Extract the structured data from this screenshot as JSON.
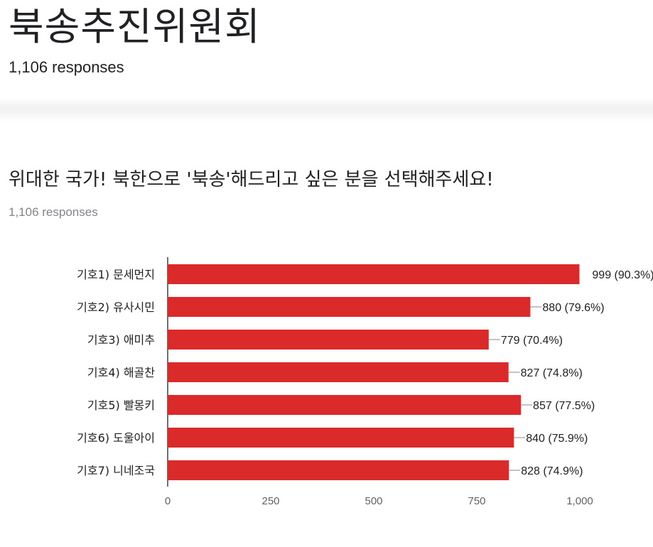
{
  "form": {
    "title": "북송추진위원회",
    "responses": "1,106 responses"
  },
  "question": {
    "title": "위대한 국가! 북한으로 '북송'해드리고 싶은 분을 선택해주세요!",
    "responses": "1,106 responses"
  },
  "colors": {
    "bar": "#db2a2a",
    "axis": "#3c4043",
    "leader": "#888888"
  },
  "chart_data": {
    "type": "bar",
    "orientation": "horizontal",
    "categories": [
      "기호1) 문세먼지",
      "기호2) 유사시민",
      "기호3) 애미추",
      "기호4) 해골찬",
      "기호5) 빨몽키",
      "기호6) 도울아이",
      "기호7) 니네조국"
    ],
    "values": [
      999,
      880,
      779,
      827,
      857,
      840,
      828
    ],
    "data_labels": [
      "999 (90.3%)",
      "880 (79.6%)",
      "779 (70.4%)",
      "827 (74.8%)",
      "857 (77.5%)",
      "840 (75.9%)",
      "828 (74.9%)"
    ],
    "xlim": [
      0,
      1000
    ],
    "xticks": [
      0,
      250,
      500,
      750,
      1000
    ],
    "xtick_labels": [
      "0",
      "250",
      "500",
      "750",
      "1,000"
    ],
    "grid": false,
    "legend": false
  }
}
